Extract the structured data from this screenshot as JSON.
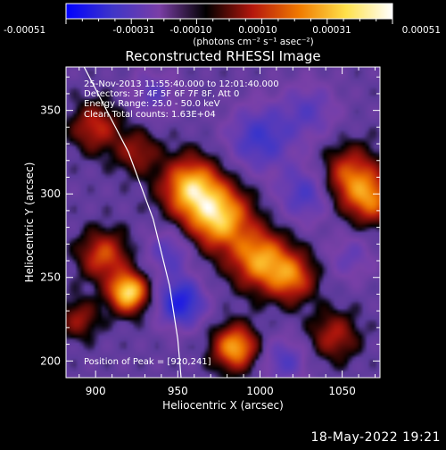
{
  "colorbar": {
    "min_label": "-0.00051",
    "tick_labels": [
      "-0.00051",
      "-0.00031",
      "-0.00010",
      "0.00010",
      "0.00031",
      "0.00051"
    ],
    "unit_label": "(photons cm⁻² s⁻¹ asec⁻²)",
    "colors": [
      "#0000ff",
      "#3f35c8",
      "#7a3ea6",
      "#000000",
      "#b5170d",
      "#f07a00",
      "#ffe14a",
      "#ffffff"
    ]
  },
  "chart_data": {
    "type": "heatmap",
    "title": "Reconstructed RHESSI Image",
    "xlabel": "Heliocentric X (arcsec)",
    "ylabel": "Heliocentric Y (arcsec)",
    "xlim": [
      882,
      1073
    ],
    "ylim": [
      190,
      376
    ],
    "x_ticks": [
      900,
      950,
      1000,
      1050
    ],
    "y_ticks": [
      200,
      250,
      300,
      350
    ],
    "annotations": [
      "25-Nov-2013 11:55:40.000 to 12:01:40.000",
      "Detectors: 3F 4F 5F 6F 7F 8F, Att 0",
      "Energy Range: 25.0 - 50.0 keV",
      "Clean     Total counts: 1.63E+04"
    ],
    "peak_label": "Position of Peak = [920,241]",
    "peak": [
      920,
      241
    ],
    "sources": [
      {
        "x": 920,
        "y": 241,
        "value": 1.0,
        "r": 8
      },
      {
        "x": 905,
        "y": 263,
        "value": 0.55,
        "r": 10
      },
      {
        "x": 958,
        "y": 304,
        "value": 0.85,
        "r": 12
      },
      {
        "x": 975,
        "y": 286,
        "value": 0.9,
        "r": 13
      },
      {
        "x": 1000,
        "y": 261,
        "value": 0.75,
        "r": 12
      },
      {
        "x": 1019,
        "y": 250,
        "value": 0.6,
        "r": 10
      },
      {
        "x": 985,
        "y": 208,
        "value": 0.8,
        "r": 9
      },
      {
        "x": 900,
        "y": 340,
        "value": 0.45,
        "r": 10
      },
      {
        "x": 925,
        "y": 325,
        "value": 0.35,
        "r": 9
      },
      {
        "x": 1055,
        "y": 310,
        "value": 0.6,
        "r": 12
      },
      {
        "x": 1068,
        "y": 296,
        "value": 0.55,
        "r": 10
      },
      {
        "x": 1045,
        "y": 215,
        "value": 0.4,
        "r": 10
      },
      {
        "x": 890,
        "y": 225,
        "value": 0.35,
        "r": 8
      },
      {
        "x": 945,
        "y": 265,
        "value": -0.35,
        "r": 10
      },
      {
        "x": 952,
        "y": 235,
        "value": -0.65,
        "r": 10
      },
      {
        "x": 1000,
        "y": 333,
        "value": -0.45,
        "r": 14
      },
      {
        "x": 1028,
        "y": 300,
        "value": -0.4,
        "r": 12
      },
      {
        "x": 1030,
        "y": 350,
        "value": -0.3,
        "r": 12
      },
      {
        "x": 1055,
        "y": 262,
        "value": -0.25,
        "r": 10
      },
      {
        "x": 935,
        "y": 360,
        "value": -0.3,
        "r": 10
      },
      {
        "x": 1015,
        "y": 200,
        "value": -0.35,
        "r": 10
      }
    ],
    "limb_curve": [
      [
        893,
        376
      ],
      [
        920,
        325
      ],
      [
        935,
        285
      ],
      [
        945,
        245
      ],
      [
        950,
        213
      ],
      [
        952,
        190
      ]
    ]
  },
  "footer": {
    "date": "18-May-2022 19:21"
  }
}
